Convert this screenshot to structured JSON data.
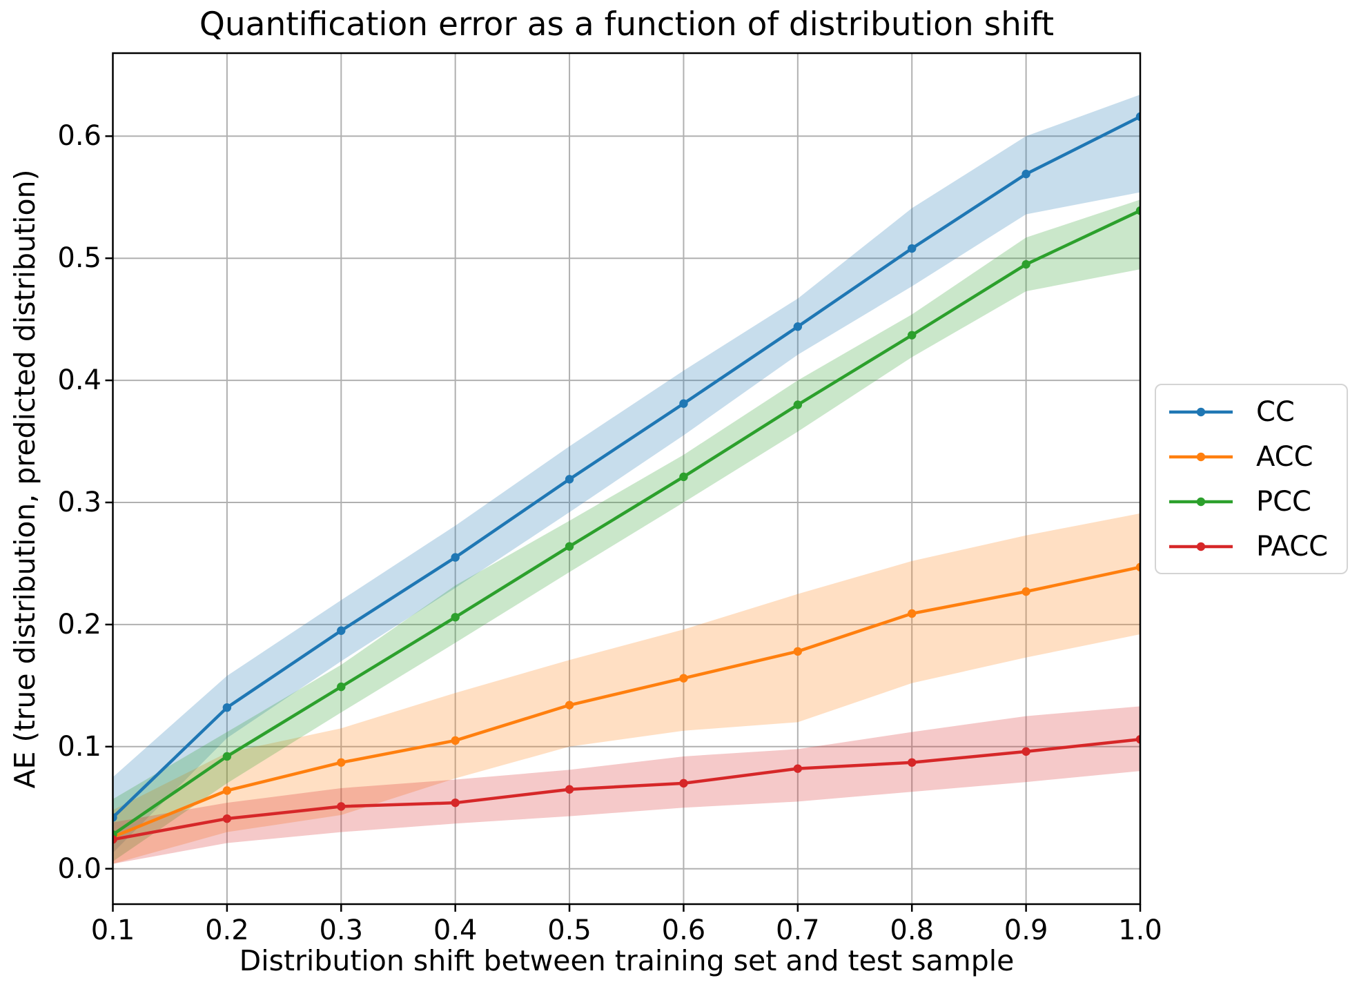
{
  "figure": {
    "title": "Quantification error as a function of distribution shift",
    "xlabel": "Distribution shift between training set and test sample",
    "ylabel": "AE (true distribution, predicted distribution)",
    "background": "#ffffff",
    "grid_color": "#b0b0b0",
    "spine_color": "#000000",
    "band_alpha": 0.25
  },
  "chart_data": {
    "type": "line",
    "title": "Quantification error as a function of distribution shift",
    "xlabel": "Distribution shift between training set and test sample",
    "ylabel": "AE (true distribution, predicted distribution)",
    "grid": true,
    "legend_position": "center right, outside axes",
    "xlim": [
      0.1,
      1.0
    ],
    "ylim": [
      -0.029,
      0.668
    ],
    "x": [
      0.1,
      0.2,
      0.3,
      0.4,
      0.5,
      0.6,
      0.7,
      0.8,
      0.9,
      1.0
    ],
    "xticks": [
      "0.1",
      "0.2",
      "0.3",
      "0.4",
      "0.5",
      "0.6",
      "0.7",
      "0.8",
      "0.9",
      "1.0"
    ],
    "yticks": [
      "0.0",
      "0.1",
      "0.2",
      "0.3",
      "0.4",
      "0.5",
      "0.6"
    ],
    "ytick_values": [
      0.0,
      0.1,
      0.2,
      0.3,
      0.4,
      0.5,
      0.6
    ],
    "series": [
      {
        "name": "CC",
        "color": "#1f77b4",
        "values": [
          0.042,
          0.132,
          0.195,
          0.255,
          0.319,
          0.381,
          0.444,
          0.508,
          0.569,
          0.616
        ],
        "band_low": [
          0.013,
          0.107,
          0.17,
          0.23,
          0.292,
          0.355,
          0.421,
          0.477,
          0.536,
          0.554
        ],
        "band_high": [
          0.075,
          0.158,
          0.22,
          0.281,
          0.346,
          0.408,
          0.467,
          0.541,
          0.6,
          0.634
        ]
      },
      {
        "name": "ACC",
        "color": "#ff7f0e",
        "values": [
          0.026,
          0.064,
          0.087,
          0.105,
          0.134,
          0.156,
          0.178,
          0.209,
          0.227,
          0.247
        ],
        "band_low": [
          0.004,
          0.03,
          0.044,
          0.074,
          0.1,
          0.113,
          0.12,
          0.152,
          0.173,
          0.192
        ],
        "band_high": [
          0.048,
          0.095,
          0.115,
          0.144,
          0.171,
          0.196,
          0.225,
          0.252,
          0.273,
          0.291
        ]
      },
      {
        "name": "PCC",
        "color": "#2ca02c",
        "values": [
          0.028,
          0.092,
          0.149,
          0.206,
          0.264,
          0.321,
          0.38,
          0.437,
          0.495,
          0.539
        ],
        "band_low": [
          0.006,
          0.07,
          0.128,
          0.185,
          0.243,
          0.3,
          0.358,
          0.419,
          0.473,
          0.491
        ],
        "band_high": [
          0.057,
          0.112,
          0.167,
          0.232,
          0.285,
          0.339,
          0.4,
          0.454,
          0.517,
          0.548
        ]
      },
      {
        "name": "PACC",
        "color": "#d62728",
        "values": [
          0.024,
          0.041,
          0.051,
          0.054,
          0.065,
          0.07,
          0.082,
          0.087,
          0.096,
          0.106
        ],
        "band_low": [
          0.004,
          0.021,
          0.03,
          0.037,
          0.043,
          0.05,
          0.055,
          0.063,
          0.071,
          0.08
        ],
        "band_high": [
          0.038,
          0.054,
          0.066,
          0.073,
          0.081,
          0.092,
          0.098,
          0.112,
          0.125,
          0.133
        ]
      }
    ]
  }
}
